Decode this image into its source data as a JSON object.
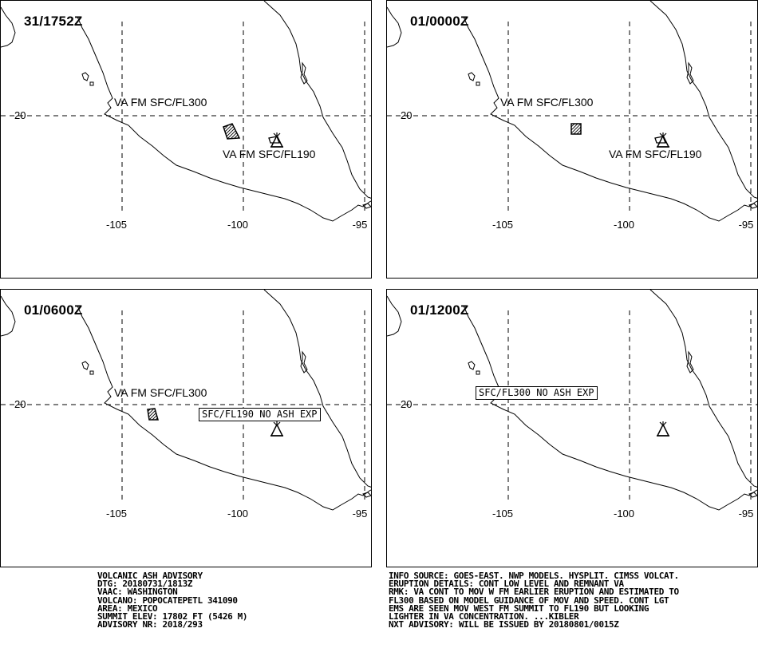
{
  "grid": {
    "lat_label": "20",
    "lon_labels": [
      "-105",
      "-100",
      "-95"
    ]
  },
  "panels": [
    {
      "time": "31/1752Z",
      "labels": [
        "VA FM SFC/FL300",
        "VA FM SFC/FL190"
      ],
      "boxes": []
    },
    {
      "time": "01/0000Z",
      "labels": [
        "VA FM SFC/FL300",
        "VA FM SFC/FL190"
      ],
      "boxes": []
    },
    {
      "time": "01/0600Z",
      "labels": [
        "VA FM SFC/FL300"
      ],
      "boxes": [
        "SFC/FL190 NO ASH EXP"
      ]
    },
    {
      "time": "01/1200Z",
      "labels": [],
      "boxes": [
        "SFC/FL300 NO ASH EXP"
      ]
    }
  ],
  "advisory_left": [
    "VOLCANIC ASH ADVISORY",
    "DTG: 20180731/1813Z",
    "VAAC: WASHINGTON",
    "VOLCANO: POPOCATEPETL 341090",
    "AREA: MEXICO",
    "SUMMIT ELEV: 17802 FT (5426 M)",
    "ADVISORY NR: 2018/293"
  ],
  "advisory_right": [
    "INFO SOURCE: GOES-EAST. NWP MODELS. HYSPLIT. CIMSS VOLCAT.",
    "ERUPTION DETAILS: CONT LOW LEVEL AND REMNANT VA",
    "RMK: VA CONT TO MOV W FM EARLIER ERUPTION AND ESTIMATED TO",
    "FL300 BASED ON MODEL GUIDANCE OF MOV AND SPEED. CONT LGT",
    "EMS ARE SEEN MOV WEST FM SUMMIT TO FL190 BUT LOOKING",
    "LIGHTER IN VA CONCENTRATION. ...KIBLER",
    "NXT ADVISORY: WILL BE ISSUED BY 20180801/0015Z"
  ]
}
